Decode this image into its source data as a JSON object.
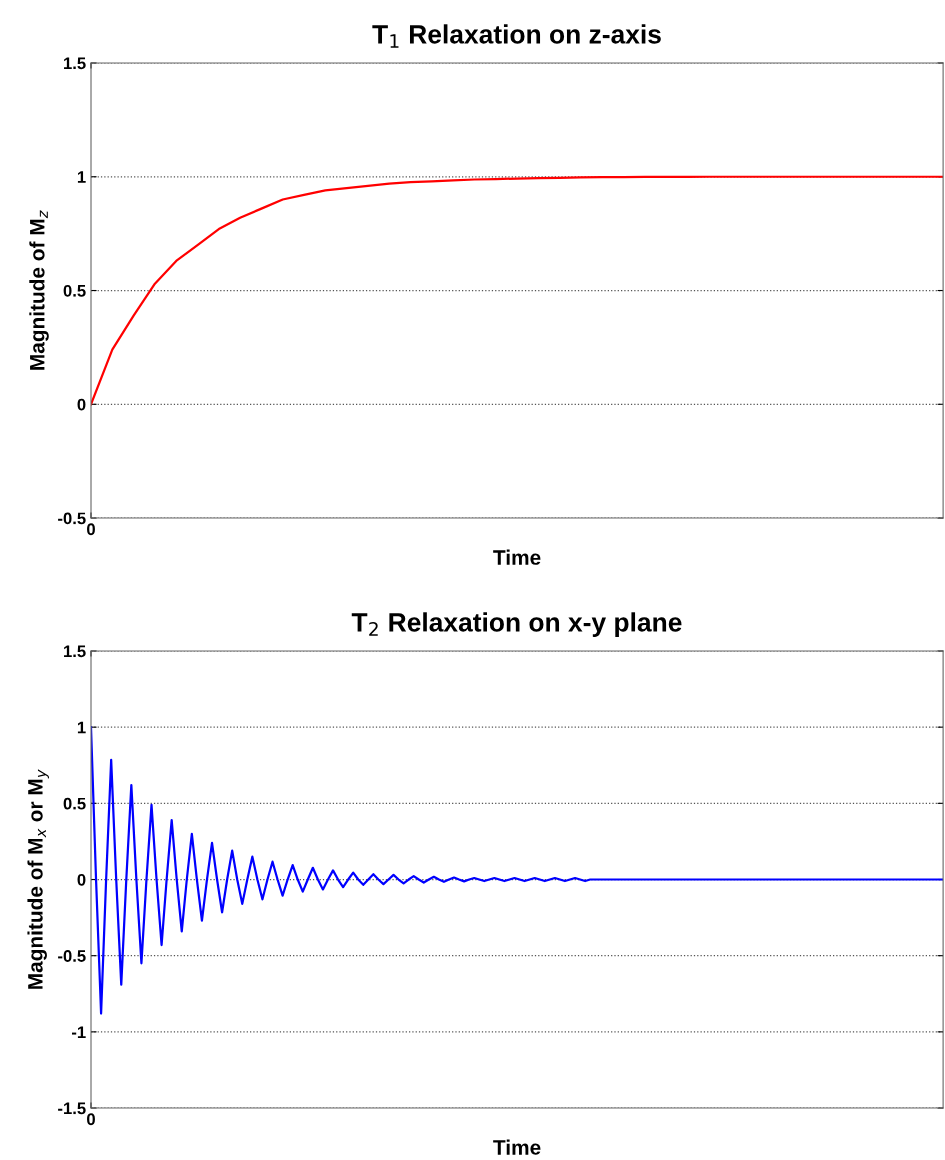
{
  "chart_data": [
    {
      "type": "line",
      "title": "T$_{1}$ Relaxation on z-axis",
      "xlabel": "Time",
      "ylabel": "Magnitude of M$_{z}$",
      "categories": [
        "0",
        null,
        null,
        null,
        null,
        null,
        null,
        null,
        null,
        null,
        null,
        null,
        null,
        null,
        null,
        null,
        null,
        null,
        null,
        null,
        null,
        null,
        null,
        null,
        null,
        null,
        null,
        null,
        null,
        null,
        null,
        null,
        null,
        null,
        null,
        null,
        null,
        null,
        null,
        null,
        null
      ],
      "series": [
        {
          "color": "#ff0000",
          "values": [
            0,
            0.24,
            0.39,
            0.53,
            0.63,
            0.7,
            0.77,
            0.82,
            0.86,
            0.9,
            0.92,
            0.94,
            0.95,
            0.96,
            0.97,
            0.976,
            0.98,
            0.984,
            0.988,
            0.99,
            0.992,
            0.994,
            0.995,
            0.997,
            0.998,
            0.998,
            0.999,
            0.999,
            0.999,
            1,
            1,
            1,
            1,
            1,
            1,
            1,
            1,
            1,
            1,
            1,
            1
          ]
        }
      ],
      "ylim": [
        -0.5,
        1.5
      ],
      "yticks": [
        -0.5,
        0,
        0.5,
        1,
        1.5
      ],
      "grid": "y",
      "legend": false,
      "line_style": "solid",
      "marker": "none"
    },
    {
      "type": "line",
      "title": "T$_{2}$ Relaxation on x-y plane",
      "xlabel": "Time",
      "ylabel": "Magnitude of M$_{x}$ or M$_{y}$",
      "categories": [
        "0",
        null,
        null,
        null,
        null,
        null,
        null,
        null,
        null,
        null,
        null,
        null,
        null,
        null,
        null,
        null,
        null,
        null,
        null,
        null,
        null,
        null,
        null,
        null,
        null,
        null,
        null,
        null,
        null,
        null,
        null,
        null,
        null,
        null,
        null,
        null,
        null,
        null,
        null,
        null,
        null,
        null,
        null,
        null,
        null,
        null,
        null,
        null,
        null,
        null,
        null,
        null,
        null,
        null,
        null,
        null,
        null,
        null,
        null,
        null,
        null,
        null,
        null,
        null,
        null,
        null,
        null,
        null,
        null,
        null,
        null,
        null,
        null,
        null,
        null,
        null,
        null,
        null,
        null,
        null,
        null,
        null,
        null,
        null,
        null,
        null,
        null,
        null,
        null,
        null,
        null,
        null,
        null,
        null,
        null,
        null,
        null,
        null,
        null,
        null,
        null,
        null,
        null,
        null,
        null,
        null,
        null,
        null,
        null,
        null,
        null,
        null,
        null,
        null,
        null,
        null,
        null,
        null,
        null,
        null,
        null,
        null,
        null,
        null,
        null,
        null,
        null,
        null,
        null,
        null,
        null,
        null,
        null,
        null,
        null,
        null,
        null,
        null,
        null,
        null,
        null,
        null,
        null,
        null,
        null,
        null,
        null,
        null,
        null,
        null,
        null,
        null,
        null,
        null,
        null,
        null,
        null,
        null,
        null,
        null,
        null,
        null,
        null,
        null,
        null,
        null,
        null,
        null,
        null,
        null
      ],
      "series": [
        {
          "color": "#0000ff",
          "values": [
            1.0,
            0,
            -0.88,
            0,
            0.785,
            0,
            -0.69,
            0,
            0.62,
            0,
            -0.55,
            0,
            0.49,
            0,
            -0.43,
            0,
            0.39,
            0,
            -0.34,
            0,
            0.3,
            0,
            -0.27,
            0,
            0.24,
            0,
            -0.215,
            0,
            0.19,
            0,
            -0.16,
            0,
            0.15,
            0,
            -0.13,
            0,
            0.117,
            0,
            -0.106,
            0,
            0.095,
            0,
            -0.08,
            0,
            0.077,
            0,
            -0.065,
            0,
            0.06,
            0,
            -0.05,
            0,
            0.045,
            0,
            -0.035,
            0,
            0.035,
            0,
            -0.03,
            0,
            0.03,
            0,
            -0.025,
            0,
            0.022,
            0,
            -0.02,
            0,
            0.018,
            0,
            -0.015,
            0,
            0.013,
            0,
            -0.012,
            0,
            0.01,
            0,
            -0.01,
            0,
            0.01,
            0,
            -0.01,
            0,
            0.01,
            0,
            -0.01,
            0,
            0.01,
            0,
            -0.01,
            0,
            0.01,
            0,
            -0.01,
            0,
            0.01,
            0,
            -0.01,
            0,
            0,
            0,
            0,
            0,
            0,
            0,
            0,
            0,
            0,
            0,
            0,
            0,
            0,
            0,
            0,
            0,
            0,
            0,
            0,
            0,
            0,
            0,
            0,
            0,
            0,
            0,
            0,
            0,
            0,
            0,
            0,
            0,
            0,
            0,
            0,
            0,
            0,
            0,
            0,
            0,
            0,
            0,
            0,
            0,
            0,
            0,
            0,
            0,
            0,
            0,
            0,
            0,
            0,
            0,
            0,
            0,
            0,
            0,
            0,
            0,
            0,
            0,
            0,
            0,
            0,
            0,
            0,
            0,
            0,
            0
          ]
        }
      ],
      "ylim": [
        -1.5,
        1.5
      ],
      "yticks": [
        -1.5,
        -1,
        -0.5,
        0,
        0.5,
        1,
        1.5
      ],
      "grid": "y",
      "legend": false,
      "line_style": "solid",
      "marker": "none"
    }
  ]
}
